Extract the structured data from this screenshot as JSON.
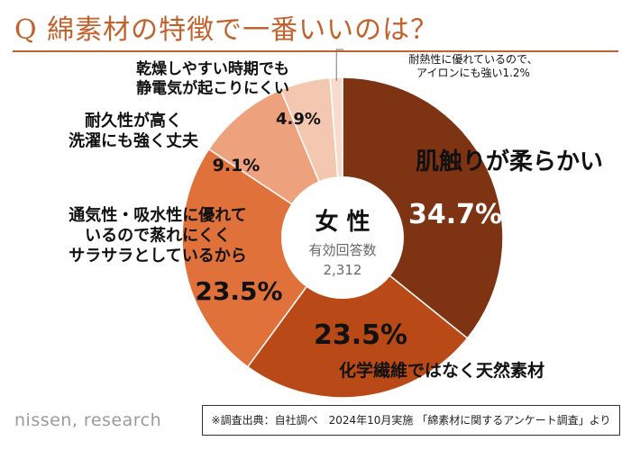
{
  "title": "Q 綿素材の特徴で一番いいのは？",
  "brand": "nissen, research",
  "source_note": "※調査出典：自社調べ　2024年10月実施 「綿素材に関するアンケート調査」より",
  "center": {
    "label": "女 性",
    "sublabel": "有効回答数",
    "count": "2,312"
  },
  "chart_data": {
    "type": "pie",
    "donut": true,
    "slices": [
      {
        "label": "肌触りが柔らかい",
        "value": 34.7,
        "display": "34.7%",
        "color": "#7e3312"
      },
      {
        "label": "化学繊維ではなく天然素材",
        "value": 23.5,
        "display": "23.5%",
        "color": "#b94a17"
      },
      {
        "label": "通気性・吸水性に優れて\nいるので蒸れにくく\nサラサラとしているから",
        "value": 23.5,
        "display": "23.5%",
        "color": "#e0713a"
      },
      {
        "label": "耐久性が高く\n洗濯にも強く丈夫",
        "value": 9.1,
        "display": "9.1%",
        "color": "#eda27d"
      },
      {
        "label": "乾燥しやすい時期でも\n静電気が起こりにくい",
        "value": 4.9,
        "display": "4.9%",
        "color": "#f4c8b0"
      },
      {
        "label": "耐熱性に優れているので、\nアイロンにも強い",
        "value": 1.2,
        "display": "1.2%",
        "color": "#f7dccd"
      }
    ]
  }
}
